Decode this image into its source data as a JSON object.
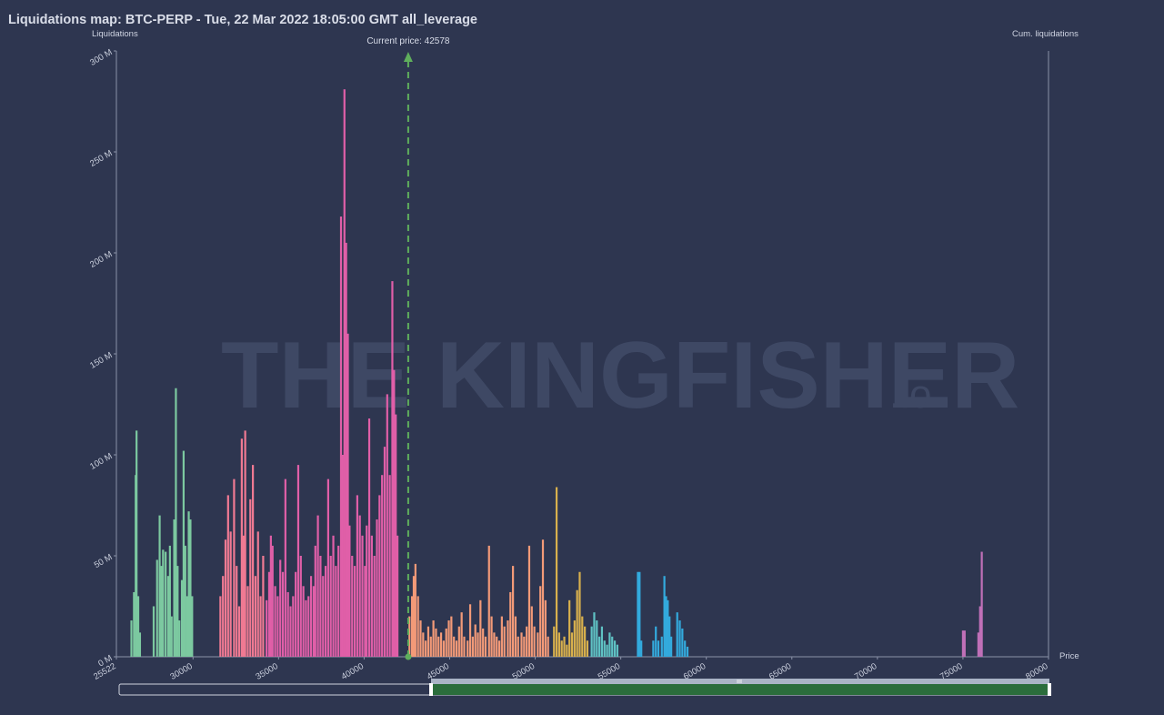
{
  "chart_data": {
    "type": "bar",
    "title": "Liquidations map: BTC-PERP - Tue, 22 Mar 2022 18:05:00 GMT all_leverage",
    "ylabel": "Liquidations",
    "y2label": "Cum. liquidations",
    "xlabel": "Price",
    "xlim": [
      25522,
      80000
    ],
    "ylim": [
      0,
      300000000
    ],
    "x_ticks": [
      "25522",
      "30000",
      "35000",
      "40000",
      "45000",
      "50000",
      "55000",
      "60000",
      "65000",
      "70000",
      "75000",
      "80000"
    ],
    "y_ticks": [
      "0 M",
      "50 M",
      "100 M",
      "150 M",
      "200 M",
      "250 M",
      "300 M"
    ],
    "current_price": 42578,
    "current_price_label": "Current price: 42578",
    "watermark": {
      "main": "THE KINGFISHER",
      "suffix": ".io"
    },
    "series": [
      {
        "color": "#7cc9a0",
        "values": [
          [
            26400,
            18
          ],
          [
            26550,
            32
          ],
          [
            26650,
            90
          ],
          [
            26700,
            112
          ],
          [
            26800,
            30
          ],
          [
            26900,
            12
          ],
          [
            27700,
            25
          ],
          [
            27900,
            48
          ],
          [
            28050,
            70
          ],
          [
            28150,
            45
          ],
          [
            28250,
            53
          ],
          [
            28400,
            52
          ],
          [
            28550,
            40
          ],
          [
            28650,
            55
          ],
          [
            28750,
            20
          ],
          [
            28900,
            68
          ],
          [
            29000,
            133
          ],
          [
            29100,
            45
          ],
          [
            29200,
            18
          ],
          [
            29350,
            38
          ],
          [
            29450,
            102
          ],
          [
            29550,
            55
          ],
          [
            29650,
            30
          ],
          [
            29750,
            72
          ],
          [
            29850,
            68
          ],
          [
            29950,
            30
          ]
        ]
      },
      {
        "color": "#f07a93",
        "values": [
          [
            31600,
            30
          ],
          [
            31750,
            40
          ],
          [
            31900,
            58
          ],
          [
            32050,
            80
          ],
          [
            32200,
            62
          ],
          [
            32400,
            88
          ],
          [
            32550,
            45
          ],
          [
            32700,
            25
          ],
          [
            32850,
            108
          ],
          [
            32950,
            60
          ],
          [
            33050,
            112
          ],
          [
            33200,
            35
          ],
          [
            33350,
            78
          ],
          [
            33500,
            95
          ],
          [
            33650,
            40
          ],
          [
            33800,
            62
          ],
          [
            33950,
            30
          ],
          [
            34100,
            50
          ]
        ]
      },
      {
        "color": "#e05fa8",
        "values": [
          [
            34300,
            28
          ],
          [
            34450,
            42
          ],
          [
            34550,
            60
          ],
          [
            34650,
            55
          ],
          [
            34800,
            35
          ],
          [
            34950,
            30
          ],
          [
            35100,
            48
          ],
          [
            35250,
            42
          ],
          [
            35400,
            88
          ],
          [
            35550,
            32
          ],
          [
            35700,
            25
          ],
          [
            35850,
            30
          ],
          [
            36000,
            42
          ],
          [
            36150,
            95
          ],
          [
            36300,
            50
          ],
          [
            36450,
            35
          ],
          [
            36600,
            28
          ],
          [
            36750,
            30
          ],
          [
            36900,
            40
          ],
          [
            37050,
            35
          ],
          [
            37150,
            55
          ],
          [
            37300,
            70
          ],
          [
            37450,
            50
          ],
          [
            37600,
            40
          ],
          [
            37750,
            45
          ],
          [
            37900,
            88
          ],
          [
            38050,
            50
          ],
          [
            38200,
            60
          ],
          [
            38350,
            45
          ],
          [
            38500,
            55
          ],
          [
            38650,
            218
          ],
          [
            38750,
            100
          ],
          [
            38850,
            281
          ],
          [
            38950,
            205
          ],
          [
            39050,
            160
          ],
          [
            39150,
            65
          ],
          [
            39300,
            50
          ],
          [
            39450,
            45
          ],
          [
            39600,
            80
          ],
          [
            39750,
            70
          ],
          [
            39900,
            60
          ],
          [
            40050,
            45
          ],
          [
            40150,
            65
          ],
          [
            40300,
            118
          ],
          [
            40450,
            60
          ],
          [
            40600,
            50
          ],
          [
            40750,
            68
          ],
          [
            40900,
            80
          ],
          [
            41050,
            90
          ],
          [
            41200,
            104
          ],
          [
            41350,
            130
          ],
          [
            41500,
            90
          ],
          [
            41650,
            186
          ],
          [
            41750,
            142
          ],
          [
            41850,
            120
          ],
          [
            41950,
            60
          ]
        ]
      },
      {
        "color": "#f39a78",
        "values": [
          [
            42650,
            20
          ],
          [
            42800,
            30
          ],
          [
            42900,
            40
          ],
          [
            43000,
            46
          ],
          [
            43150,
            30
          ],
          [
            43300,
            18
          ],
          [
            43450,
            12
          ],
          [
            43600,
            8
          ],
          [
            43750,
            15
          ],
          [
            43900,
            10
          ],
          [
            44050,
            18
          ],
          [
            44200,
            14
          ],
          [
            44350,
            10
          ],
          [
            44500,
            12
          ],
          [
            44650,
            8
          ],
          [
            44800,
            14
          ],
          [
            44950,
            18
          ],
          [
            45100,
            20
          ],
          [
            45250,
            10
          ],
          [
            45400,
            8
          ],
          [
            45550,
            15
          ],
          [
            45700,
            22
          ],
          [
            45850,
            10
          ],
          [
            46050,
            8
          ],
          [
            46200,
            26
          ],
          [
            46350,
            10
          ],
          [
            46500,
            16
          ],
          [
            46650,
            12
          ],
          [
            46800,
            28
          ],
          [
            46950,
            14
          ],
          [
            47100,
            10
          ],
          [
            47300,
            55
          ],
          [
            47450,
            20
          ],
          [
            47600,
            12
          ],
          [
            47750,
            10
          ],
          [
            47900,
            8
          ],
          [
            48050,
            20
          ],
          [
            48200,
            15
          ],
          [
            48400,
            18
          ],
          [
            48550,
            32
          ],
          [
            48700,
            45
          ],
          [
            48850,
            20
          ],
          [
            49000,
            10
          ],
          [
            49200,
            12
          ],
          [
            49350,
            10
          ],
          [
            49500,
            15
          ],
          [
            49650,
            55
          ],
          [
            49800,
            25
          ],
          [
            49950,
            15
          ],
          [
            50150,
            12
          ],
          [
            50300,
            35
          ],
          [
            50450,
            58
          ],
          [
            50600,
            28
          ],
          [
            50750,
            10
          ]
        ]
      },
      {
        "color": "#d8b04d",
        "values": [
          [
            51100,
            15
          ],
          [
            51250,
            84
          ],
          [
            51400,
            12
          ],
          [
            51550,
            8
          ],
          [
            51700,
            10
          ],
          [
            51850,
            6
          ],
          [
            52000,
            28
          ],
          [
            52150,
            12
          ],
          [
            52300,
            18
          ],
          [
            52450,
            33
          ],
          [
            52600,
            42
          ],
          [
            52750,
            20
          ],
          [
            52900,
            15
          ],
          [
            53050,
            8
          ]
        ]
      },
      {
        "color": "#5fc2c4",
        "values": [
          [
            53300,
            15
          ],
          [
            53450,
            22
          ],
          [
            53600,
            18
          ],
          [
            53750,
            10
          ],
          [
            53900,
            15
          ],
          [
            54050,
            8
          ],
          [
            54200,
            6
          ],
          [
            54350,
            12
          ],
          [
            54500,
            10
          ],
          [
            54650,
            8
          ],
          [
            54800,
            6
          ]
        ]
      },
      {
        "color": "#33aadd",
        "values": [
          [
            56000,
            42
          ],
          [
            56100,
            42
          ],
          [
            56200,
            8
          ],
          [
            56900,
            8
          ],
          [
            57050,
            15
          ],
          [
            57200,
            8
          ],
          [
            57400,
            10
          ],
          [
            57550,
            40
          ],
          [
            57650,
            30
          ],
          [
            57750,
            28
          ],
          [
            57850,
            20
          ],
          [
            57950,
            10
          ],
          [
            58300,
            22
          ],
          [
            58450,
            18
          ],
          [
            58600,
            14
          ],
          [
            58750,
            8
          ],
          [
            58900,
            5
          ]
        ]
      },
      {
        "color": "#c070b8",
        "values": [
          [
            75000,
            13
          ],
          [
            75100,
            13
          ],
          [
            75900,
            12
          ],
          [
            76000,
            25
          ],
          [
            76100,
            52
          ]
        ]
      }
    ]
  }
}
